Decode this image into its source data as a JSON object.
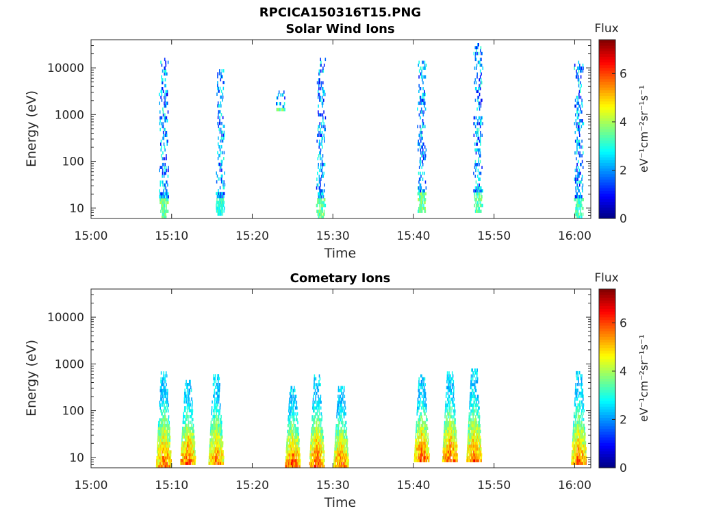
{
  "figure_title": "RPCICA150316T15.PNG",
  "chart_data": [
    {
      "type": "heatmap",
      "title": "Solar Wind Ions",
      "xlabel": "Time",
      "ylabel": "Energy (eV)",
      "yscale": "log",
      "xlim": [
        "15:00",
        "16:02"
      ],
      "ylim": [
        6,
        40000
      ],
      "x_ticks": [
        "15:00",
        "15:10",
        "15:20",
        "15:30",
        "15:40",
        "15:50",
        "16:00"
      ],
      "y_ticks": [
        "10",
        "100",
        "1000",
        "10000"
      ],
      "colorbar": {
        "label": "eV⁻¹cm⁻²sr⁻¹s⁻¹",
        "title": "Flux",
        "range": [
          0,
          7.4
        ],
        "ticks": [
          "0",
          "2",
          "4",
          "6"
        ],
        "colormap": "jet"
      },
      "bursts": [
        {
          "time": "15:09",
          "e_min": 6,
          "e_max": 15000,
          "peak_flux": 4.2
        },
        {
          "time": "15:16",
          "e_min": 7,
          "e_max": 8000,
          "peak_flux": 3.6
        },
        {
          "time": "15:23.5",
          "e_min": 1200,
          "e_max": 3000,
          "peak_flux": 4.0
        },
        {
          "time": "15:28.5",
          "e_min": 6,
          "e_max": 15000,
          "peak_flux": 4.0
        },
        {
          "time": "15:41",
          "e_min": 8,
          "e_max": 12000,
          "peak_flux": 4.2
        },
        {
          "time": "15:48",
          "e_min": 8,
          "e_max": 30000,
          "peak_flux": 4.0
        },
        {
          "time": "16:00.5",
          "e_min": 6,
          "e_max": 12000,
          "peak_flux": 3.8
        }
      ]
    },
    {
      "type": "heatmap",
      "title": "Cometary Ions",
      "xlabel": "Time",
      "ylabel": "Energy (eV)",
      "yscale": "log",
      "xlim": [
        "15:00",
        "16:02"
      ],
      "ylim": [
        6,
        40000
      ],
      "x_ticks": [
        "15:00",
        "15:10",
        "15:20",
        "15:30",
        "15:40",
        "15:50",
        "16:00"
      ],
      "y_ticks": [
        "10",
        "100",
        "1000",
        "10000"
      ],
      "colorbar": {
        "label": "eV⁻¹cm⁻²sr⁻¹s⁻¹",
        "title": "Flux",
        "range": [
          0,
          7.4
        ],
        "ticks": [
          "0",
          "2",
          "4",
          "6"
        ],
        "colormap": "jet"
      },
      "bursts": [
        {
          "time": "15:09",
          "e_min": 6,
          "e_max": 600,
          "peak_flux": 6.8
        },
        {
          "time": "15:12",
          "e_min": 7,
          "e_max": 400,
          "peak_flux": 7.0
        },
        {
          "time": "15:15.5",
          "e_min": 7,
          "e_max": 500,
          "peak_flux": 6.6
        },
        {
          "time": "15:25",
          "e_min": 6,
          "e_max": 300,
          "peak_flux": 7.0
        },
        {
          "time": "15:28",
          "e_min": 6,
          "e_max": 500,
          "peak_flux": 7.0
        },
        {
          "time": "15:31",
          "e_min": 6,
          "e_max": 300,
          "peak_flux": 6.8
        },
        {
          "time": "15:41",
          "e_min": 8,
          "e_max": 500,
          "peak_flux": 7.0
        },
        {
          "time": "15:44.5",
          "e_min": 8,
          "e_max": 600,
          "peak_flux": 7.0
        },
        {
          "time": "15:47.5",
          "e_min": 8,
          "e_max": 700,
          "peak_flux": 6.8
        },
        {
          "time": "16:00.5",
          "e_min": 7,
          "e_max": 600,
          "peak_flux": 6.8
        }
      ]
    }
  ]
}
